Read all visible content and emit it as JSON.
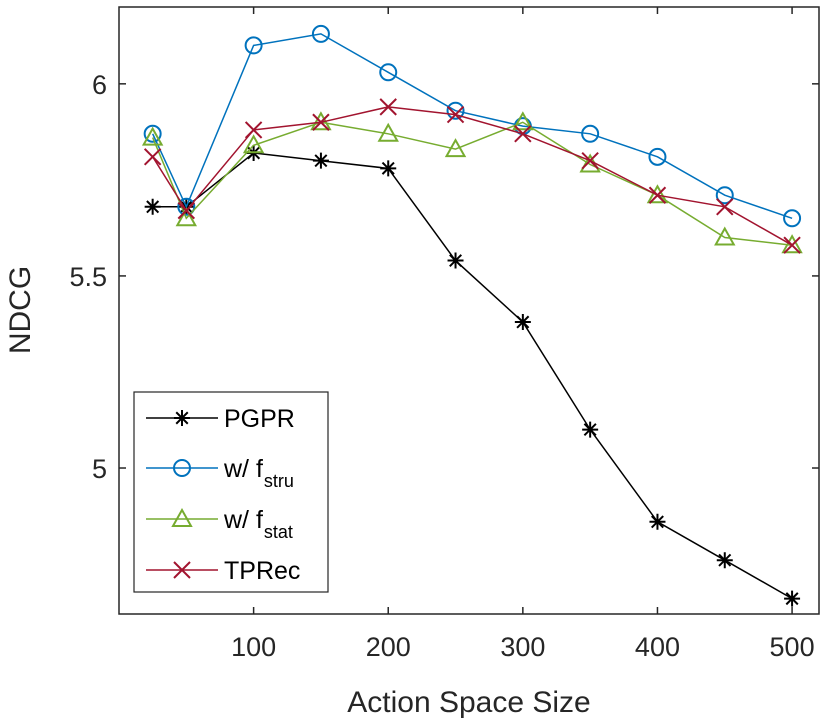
{
  "chart_data": {
    "type": "line",
    "title": "",
    "xlabel": "Action Space Size",
    "ylabel": "NDCG",
    "xlim": [
      0,
      520
    ],
    "ylim": [
      4.62,
      6.2
    ],
    "xticks": [
      100,
      200,
      300,
      400,
      500
    ],
    "yticks": [
      5,
      5.5,
      6
    ],
    "ytick_labels": [
      "5",
      "5.5",
      "6"
    ],
    "x": [
      25,
      50,
      100,
      150,
      200,
      250,
      300,
      350,
      400,
      450,
      500
    ],
    "legend_position": "bottom-left",
    "series": [
      {
        "name": "PGPR",
        "name_sub": "",
        "color": "#000000",
        "marker": "asterisk",
        "values": [
          5.68,
          5.68,
          5.82,
          5.8,
          5.78,
          5.54,
          5.38,
          5.1,
          4.86,
          4.76,
          4.66
        ]
      },
      {
        "name": "w/ f",
        "name_sub": "stru",
        "color": "#0072BD",
        "marker": "circle",
        "values": [
          5.87,
          5.68,
          6.1,
          6.13,
          6.03,
          5.93,
          5.89,
          5.87,
          5.81,
          5.71,
          5.65
        ]
      },
      {
        "name": "w/ f",
        "name_sub": "stat",
        "color": "#77AC30",
        "marker": "triangle",
        "values": [
          5.86,
          5.65,
          5.84,
          5.9,
          5.87,
          5.83,
          5.9,
          5.79,
          5.71,
          5.6,
          5.58
        ]
      },
      {
        "name": "TPRec",
        "name_sub": "",
        "color": "#A2142F",
        "marker": "x",
        "values": [
          5.81,
          5.67,
          5.88,
          5.9,
          5.94,
          5.92,
          5.87,
          5.8,
          5.71,
          5.68,
          5.58
        ]
      }
    ]
  }
}
